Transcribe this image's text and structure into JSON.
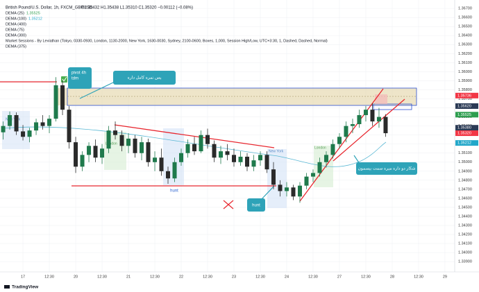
{
  "chart_data": {
    "type": "candlestick",
    "title": "British Pound/U.S. Dollar, 1h, FXCM_GBPUSD",
    "ohlc_summary": "O1.35432 H1.35438 L1.35310 C1.35320 −0.00112 (−0.08%)",
    "indicators": [
      {
        "name": "DEMA (25)",
        "value": "1.35525",
        "color": "#2e9e4f"
      },
      {
        "name": "DEMA (100)",
        "value": "1.35212",
        "color": "#22a7c9"
      },
      {
        "name": "DEMA (400)"
      },
      {
        "name": "DEMA (75)"
      },
      {
        "name": "DEMA (300)"
      },
      {
        "name": "Market Sessions - By Leviathan (Tokyo, 0330-0930, London, 1130-2000, New York, 1630-0030, Sydney, 2100-0600, Boxes, 1,000, Session High/Low, UTC+3:30, 1, Dashed, Dashed, Normal)"
      },
      {
        "name": "DEMA (375)"
      }
    ],
    "annotations": {
      "pivot": "pivot 4h",
      "pivot_sub": "tdm",
      "callout_top": "پس نمره کامل داره",
      "callout_right": "شکار دو داره میره سمت بیسمون",
      "hunt_1": "hunt",
      "hunt_2": "hunt",
      "session_1": "New York",
      "session_2": "London",
      "session_3": "New York",
      "session_4": "London"
    },
    "brand": "TradingView",
    "colors": {
      "up": "#1f7a4c",
      "down": "#2a2a2a"
    },
    "xlim": [
      -0.87,
      16.37
    ],
    "xticks": [
      {
        "value": 0,
        "label": "17"
      },
      {
        "value": 1,
        "label": "12:30"
      },
      {
        "value": 2,
        "label": "20"
      },
      {
        "value": 3,
        "label": "12:30"
      },
      {
        "value": 4,
        "label": "21"
      },
      {
        "value": 5,
        "label": "12:30"
      },
      {
        "value": 6,
        "label": "22"
      },
      {
        "value": 7,
        "label": "12:30"
      },
      {
        "value": 8,
        "label": "23"
      },
      {
        "value": 9,
        "label": "12:30"
      },
      {
        "value": 10,
        "label": "24"
      },
      {
        "value": 11,
        "label": "12:30"
      },
      {
        "value": 12,
        "label": "27"
      },
      {
        "value": 13,
        "label": "12:30"
      },
      {
        "value": 14,
        "label": "28"
      },
      {
        "value": 15,
        "label": "12:30"
      },
      {
        "value": 16,
        "label": "29"
      }
    ],
    "ylim": [
      1.3384,
      1.3677
    ],
    "yticks": [
      {
        "value": 1.339,
        "label": "1.33900"
      },
      {
        "value": 1.34,
        "label": "1.34000"
      },
      {
        "value": 1.341,
        "label": "1.34100"
      },
      {
        "value": 1.342,
        "label": "1.34200"
      },
      {
        "value": 1.343,
        "label": "1.34300"
      },
      {
        "value": 1.344,
        "label": "1.34400"
      },
      {
        "value": 1.345,
        "label": "1.34500"
      },
      {
        "value": 1.346,
        "label": "1.34600"
      },
      {
        "value": 1.347,
        "label": "1.34700"
      },
      {
        "value": 1.348,
        "label": "1.34800"
      },
      {
        "value": 1.349,
        "label": "1.34900"
      },
      {
        "value": 1.35,
        "label": "1.35000"
      },
      {
        "value": 1.351,
        "label": "1.35100"
      },
      {
        "value": 1.352,
        "label": "1.35200"
      },
      {
        "value": 1.353,
        "label": "1.35300"
      },
      {
        "value": 1.354,
        "label": "1.35400"
      },
      {
        "value": 1.355,
        "label": "1.35500"
      },
      {
        "value": 1.356,
        "label": "1.35600"
      },
      {
        "value": 1.357,
        "label": "1.35700"
      },
      {
        "value": 1.358,
        "label": "1.35800"
      },
      {
        "value": 1.359,
        "label": "1.35900"
      },
      {
        "value": 1.36,
        "label": "1.36000"
      },
      {
        "value": 1.361,
        "label": "1.36100"
      },
      {
        "value": 1.362,
        "label": "1.36200"
      },
      {
        "value": 1.363,
        "label": "1.36300"
      },
      {
        "value": 1.364,
        "label": "1.36400"
      },
      {
        "value": 1.365,
        "label": "1.36500"
      },
      {
        "value": 1.366,
        "label": "1.36600"
      },
      {
        "value": 1.367,
        "label": "1.36700"
      }
    ],
    "price_tags": [
      {
        "value": 1.35736,
        "label": "1.35736",
        "color": "#f23645"
      },
      {
        "value": 1.3562,
        "label": "1.35620",
        "color": "#2b3a55"
      },
      {
        "value": 1.35525,
        "label": "1.35525",
        "color": "#2e9e4f"
      },
      {
        "value": 1.3538,
        "label": "1.35380",
        "color": "#2b3a55"
      },
      {
        "value": 1.3532,
        "label": "1.35320",
        "color": "#f23645"
      },
      {
        "value": 1.35212,
        "label": "1.35212",
        "color": "#22a7c9"
      }
    ],
    "x": [
      -0.75,
      -0.5,
      -0.25,
      0,
      0.25,
      0.5,
      0.75,
      1,
      1.25,
      1.5,
      1.75,
      2,
      2.25,
      2.5,
      2.75,
      3,
      3.25,
      3.5,
      3.75,
      4,
      4.25,
      4.5,
      4.75,
      5,
      5.25,
      5.5,
      5.75,
      6,
      6.25,
      6.5,
      6.75,
      7,
      7.25,
      7.5,
      7.75,
      8,
      8.25,
      8.5,
      8.75,
      9,
      9.25,
      9.5,
      9.75,
      10,
      10.25,
      10.5,
      10.75,
      11,
      11.25,
      11.5,
      11.75,
      12,
      12.25,
      12.5,
      12.75,
      13,
      13.25,
      13.5,
      13.75
    ],
    "open": [
      1.3533,
      1.354,
      1.3552,
      1.3534,
      1.3528,
      1.3535,
      1.3544,
      1.354,
      1.3548,
      1.3585,
      1.3558,
      1.3522,
      1.3495,
      1.3508,
      1.3518,
      1.3505,
      1.3515,
      1.3535,
      1.353,
      1.3518,
      1.3526,
      1.351,
      1.3522,
      1.35,
      1.3505,
      1.349,
      1.3482,
      1.35,
      1.351,
      1.352,
      1.3512,
      1.353,
      1.352,
      1.3505,
      1.3512,
      1.3508,
      1.35,
      1.3506,
      1.3495,
      1.3502,
      1.3508,
      1.3492,
      1.3475,
      1.3468,
      1.3472,
      1.3462,
      1.3474,
      1.3484,
      1.3488,
      1.35,
      1.3508,
      1.352,
      1.3528,
      1.354,
      1.3542,
      1.3552,
      1.3558,
      1.3545,
      1.355
    ],
    "high": [
      1.3545,
      1.3556,
      1.3555,
      1.3541,
      1.3538,
      1.3548,
      1.3552,
      1.3552,
      1.3594,
      1.359,
      1.3562,
      1.3528,
      1.3512,
      1.3522,
      1.3525,
      1.352,
      1.354,
      1.3545,
      1.3535,
      1.3532,
      1.353,
      1.3528,
      1.3526,
      1.3512,
      1.3515,
      1.3495,
      1.3505,
      1.3515,
      1.3525,
      1.3528,
      1.3535,
      1.3537,
      1.3524,
      1.3518,
      1.352,
      1.3515,
      1.3512,
      1.351,
      1.3508,
      1.3512,
      1.3512,
      1.35,
      1.348,
      1.3478,
      1.3475,
      1.3478,
      1.3488,
      1.3492,
      1.3505,
      1.3512,
      1.3525,
      1.3532,
      1.3545,
      1.3548,
      1.3558,
      1.3562,
      1.3565,
      1.356,
      1.3553
    ],
    "low": [
      1.3525,
      1.3536,
      1.353,
      1.3524,
      1.3522,
      1.353,
      1.3536,
      1.3532,
      1.3545,
      1.3552,
      1.3515,
      1.3488,
      1.349,
      1.35,
      1.35,
      1.3498,
      1.351,
      1.3525,
      1.3512,
      1.351,
      1.3505,
      1.3502,
      1.3495,
      1.349,
      1.3485,
      1.3476,
      1.3478,
      1.3496,
      1.3505,
      1.3508,
      1.351,
      1.3515,
      1.35,
      1.3498,
      1.3502,
      1.3495,
      1.3496,
      1.349,
      1.349,
      1.3496,
      1.3488,
      1.347,
      1.3462,
      1.3462,
      1.3458,
      1.3455,
      1.347,
      1.3478,
      1.3484,
      1.3494,
      1.3504,
      1.3515,
      1.3522,
      1.3532,
      1.3538,
      1.3545,
      1.354,
      1.3538,
      1.3528
    ],
    "close": [
      1.354,
      1.3552,
      1.3534,
      1.3528,
      1.3535,
      1.3544,
      1.354,
      1.3548,
      1.3585,
      1.3558,
      1.3522,
      1.3495,
      1.3508,
      1.3518,
      1.3505,
      1.3515,
      1.3535,
      1.353,
      1.3518,
      1.3526,
      1.351,
      1.3522,
      1.35,
      1.3505,
      1.349,
      1.3482,
      1.35,
      1.351,
      1.352,
      1.3512,
      1.353,
      1.352,
      1.3505,
      1.3512,
      1.3508,
      1.35,
      1.3506,
      1.3495,
      1.3502,
      1.3508,
      1.3492,
      1.3475,
      1.3468,
      1.3472,
      1.3462,
      1.3474,
      1.3484,
      1.3488,
      1.35,
      1.3508,
      1.352,
      1.3528,
      1.354,
      1.3542,
      1.3552,
      1.3558,
      1.3545,
      1.355,
      1.3532
    ]
  }
}
